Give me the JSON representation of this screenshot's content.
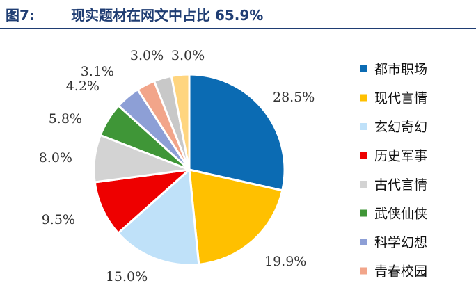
{
  "header": {
    "figure_label": "图7:",
    "title": "现实题材在网文中占比 65.9%"
  },
  "chart_data": {
    "type": "pie",
    "title": "现实题材在网文中占比 65.9%",
    "start_angle_deg": 0,
    "direction": "clockwise",
    "legend_position": "right",
    "slices": [
      {
        "name": "都市职场",
        "value": 28.5,
        "label": "28.5%",
        "color": "#0b6bb3"
      },
      {
        "name": "现代言情",
        "value": 19.9,
        "label": "19.9%",
        "color": "#ffc000"
      },
      {
        "name": "玄幻奇幻",
        "value": 15.0,
        "label": "15.0%",
        "color": "#bfe1f9"
      },
      {
        "name": "历史军事",
        "value": 9.5,
        "label": "9.5%",
        "color": "#ee0000"
      },
      {
        "name": "古代言情",
        "value": 8.0,
        "label": "8.0%",
        "color": "#d3d3d3"
      },
      {
        "name": "武侠仙侠",
        "value": 5.8,
        "label": "5.8%",
        "color": "#3f9637"
      },
      {
        "name": "科学幻想",
        "value": 4.2,
        "label": "4.2%",
        "color": "#8d9fd6"
      },
      {
        "name": "青春校园",
        "value": 3.1,
        "label": "3.1%",
        "color": "#f2a58a"
      },
      {
        "name": "",
        "value": 3.0,
        "label": "3.0%",
        "color": "#c8c8c8"
      },
      {
        "name": "",
        "value": 3.0,
        "label": "3.0%",
        "color": "#ffd57f"
      }
    ]
  }
}
